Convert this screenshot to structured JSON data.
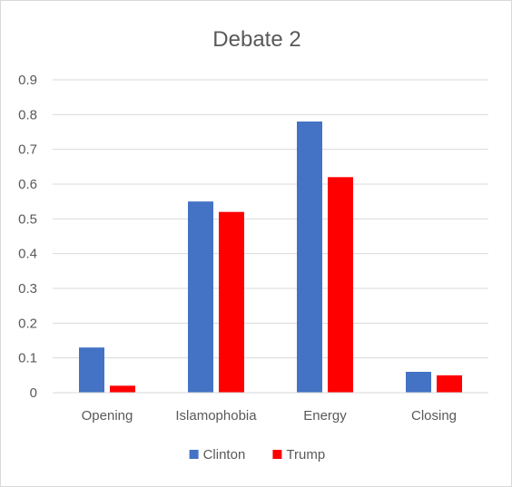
{
  "chart_data": {
    "type": "bar",
    "title": "Debate 2",
    "categories": [
      "Opening",
      "Islamophobia",
      "Energy",
      "Closing"
    ],
    "series": [
      {
        "name": "Clinton",
        "color": "#4472c4",
        "values": [
          0.13,
          0.55,
          0.78,
          0.06
        ]
      },
      {
        "name": "Trump",
        "color": "#ff0000",
        "values": [
          0.02,
          0.52,
          0.62,
          0.05
        ]
      }
    ],
    "ylim": [
      0,
      0.9
    ],
    "yticks": [
      "0",
      "0.1",
      "0.2",
      "0.3",
      "0.4",
      "0.5",
      "0.6",
      "0.7",
      "0.8",
      "0.9"
    ],
    "ytick_values": [
      0,
      0.1,
      0.2,
      0.3,
      0.4,
      0.5,
      0.6,
      0.7,
      0.8,
      0.9
    ],
    "grid": true,
    "legend_position": "bottom"
  }
}
